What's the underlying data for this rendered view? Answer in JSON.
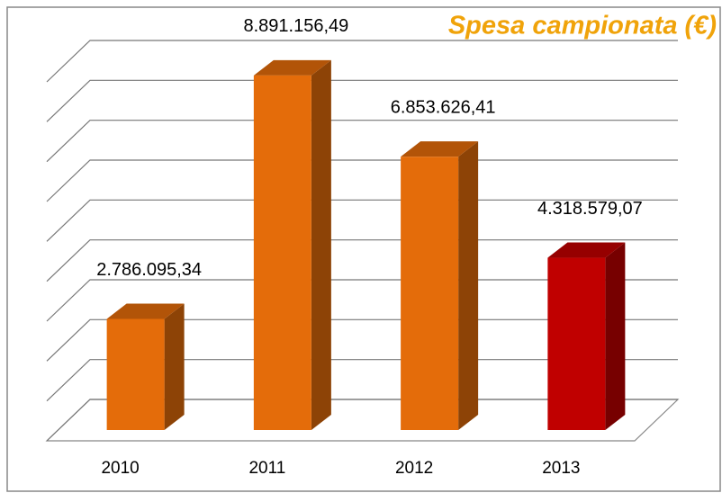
{
  "chart_data": {
    "type": "bar3d",
    "title": "Spesa campionata (€)",
    "categories": [
      "2010",
      "2011",
      "2012",
      "2013"
    ],
    "values": [
      2786095.34,
      8891156.49,
      6853626.41,
      4318579.07
    ],
    "value_labels": [
      "2.786.095,34",
      "8.891.156,49",
      "6.853.626,41",
      "4.318.579,07"
    ],
    "colors": [
      "#e46c0a",
      "#e46c0a",
      "#e46c0a",
      "#c00000"
    ],
    "ylim": [
      0,
      9000000
    ],
    "yticks": [
      0,
      1000000,
      2000000,
      3000000,
      4000000,
      5000000,
      6000000,
      7000000,
      8000000,
      9000000
    ],
    "grid": true
  }
}
